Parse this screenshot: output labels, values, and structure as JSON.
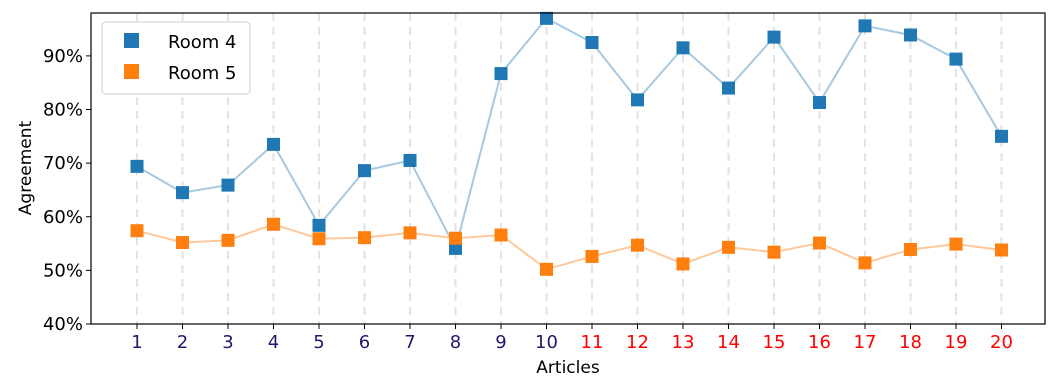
{
  "chart_data": {
    "type": "line",
    "xlabel": "Articles",
    "ylabel": "Agreement",
    "ylim": [
      0.4,
      0.98
    ],
    "yticks": [
      "40%",
      "50%",
      "60%",
      "70%",
      "80%",
      "90%"
    ],
    "ytick_values": [
      0.4,
      0.5,
      0.6,
      0.7,
      0.8,
      0.9
    ],
    "categories": [
      "1",
      "2",
      "3",
      "4",
      "5",
      "6",
      "7",
      "8",
      "9",
      "10",
      "11",
      "12",
      "13",
      "14",
      "15",
      "16",
      "17",
      "18",
      "19",
      "20"
    ],
    "category_colors": [
      "#1f1a6e",
      "#1f1a6e",
      "#1f1a6e",
      "#1f1a6e",
      "#1f1a6e",
      "#1f1a6e",
      "#1f1a6e",
      "#1f1a6e",
      "#1f1a6e",
      "#1f1a6e",
      "#ff0000",
      "#ff0000",
      "#ff0000",
      "#ff0000",
      "#ff0000",
      "#ff0000",
      "#ff0000",
      "#ff0000",
      "#ff0000",
      "#ff0000"
    ],
    "vertical_gridlines": "dashed",
    "legend_position": "top-left",
    "series": [
      {
        "name": "Room 4",
        "color": "#1f77b4",
        "line_color": "#a6c8e0",
        "marker": "square",
        "values": [
          0.694,
          0.645,
          0.659,
          0.735,
          0.584,
          0.686,
          0.705,
          0.541,
          0.867,
          0.97,
          0.925,
          0.818,
          0.915,
          0.84,
          0.935,
          0.813,
          0.956,
          0.939,
          0.894,
          0.75
        ]
      },
      {
        "name": "Room 5",
        "color": "#ff7f0e",
        "line_color": "#ffc89a",
        "marker": "square",
        "values": [
          0.574,
          0.552,
          0.556,
          0.586,
          0.559,
          0.561,
          0.57,
          0.56,
          0.566,
          0.502,
          0.526,
          0.547,
          0.512,
          0.543,
          0.534,
          0.551,
          0.514,
          0.539,
          0.549,
          0.538
        ]
      }
    ]
  }
}
